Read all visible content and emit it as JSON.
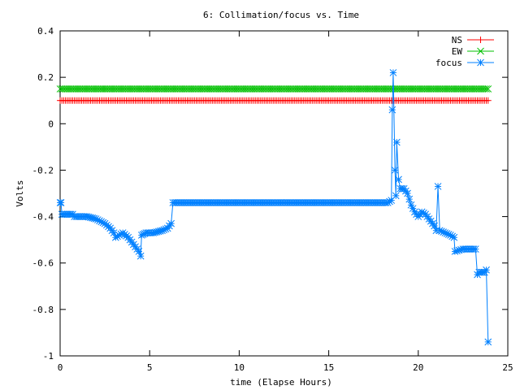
{
  "chart_data": {
    "type": "line",
    "title": "6: Collimation/focus vs. Time",
    "xlabel": "time (Elapse Hours)",
    "ylabel": "Volts",
    "xlim": [
      0,
      25
    ],
    "ylim": [
      -1,
      0.4
    ],
    "x_ticks": [
      0,
      5,
      10,
      15,
      20,
      25
    ],
    "y_ticks": [
      -1,
      -0.8,
      -0.6,
      -0.4,
      -0.2,
      0,
      0.2,
      0.4
    ],
    "x_tick_labels": [
      "0",
      "5",
      "10",
      "15",
      "20",
      "25"
    ],
    "y_tick_labels": [
      "-1",
      "-0.8",
      "-0.6",
      "-0.4",
      "-0.2",
      "0",
      "0.2",
      "0.4"
    ],
    "grid": false,
    "legend_position": "top-right",
    "series": [
      {
        "name": "NS",
        "color": "#ff0000",
        "marker": "plus",
        "points": [
          [
            0,
            0.1
          ],
          [
            23.9,
            0.1
          ]
        ]
      },
      {
        "name": "EW",
        "color": "#00c000",
        "marker": "cross",
        "points": [
          [
            0,
            0.15
          ],
          [
            23.9,
            0.15
          ]
        ]
      },
      {
        "name": "focus",
        "color": "#0080ff",
        "marker": "star",
        "points": [
          [
            0,
            -0.34
          ],
          [
            0.05,
            -0.34
          ],
          [
            0.1,
            -0.39
          ],
          [
            0.5,
            -0.39
          ],
          [
            0.7,
            -0.39
          ],
          [
            0.8,
            -0.4
          ],
          [
            1.5,
            -0.4
          ],
          [
            2.0,
            -0.41
          ],
          [
            2.5,
            -0.43
          ],
          [
            2.8,
            -0.45
          ],
          [
            3.0,
            -0.47
          ],
          [
            3.1,
            -0.49
          ],
          [
            3.3,
            -0.48
          ],
          [
            3.5,
            -0.47
          ],
          [
            3.8,
            -0.49
          ],
          [
            4.1,
            -0.52
          ],
          [
            4.4,
            -0.55
          ],
          [
            4.5,
            -0.57
          ],
          [
            4.55,
            -0.48
          ],
          [
            4.8,
            -0.47
          ],
          [
            5.2,
            -0.47
          ],
          [
            5.7,
            -0.46
          ],
          [
            6.0,
            -0.45
          ],
          [
            6.2,
            -0.43
          ],
          [
            6.3,
            -0.34
          ],
          [
            10.0,
            -0.34
          ],
          [
            15.0,
            -0.34
          ],
          [
            18.3,
            -0.34
          ],
          [
            18.5,
            -0.33
          ],
          [
            18.55,
            0.06
          ],
          [
            18.6,
            0.22
          ],
          [
            18.7,
            -0.2
          ],
          [
            18.75,
            -0.31
          ],
          [
            18.8,
            -0.08
          ],
          [
            18.9,
            -0.24
          ],
          [
            19.0,
            -0.28
          ],
          [
            19.2,
            -0.28
          ],
          [
            19.4,
            -0.3
          ],
          [
            19.6,
            -0.35
          ],
          [
            19.8,
            -0.38
          ],
          [
            20.0,
            -0.4
          ],
          [
            20.2,
            -0.38
          ],
          [
            20.4,
            -0.39
          ],
          [
            20.6,
            -0.41
          ],
          [
            20.9,
            -0.44
          ],
          [
            21.0,
            -0.46
          ],
          [
            21.1,
            -0.27
          ],
          [
            21.2,
            -0.46
          ],
          [
            21.5,
            -0.47
          ],
          [
            21.8,
            -0.48
          ],
          [
            22.0,
            -0.49
          ],
          [
            22.05,
            -0.55
          ],
          [
            22.5,
            -0.54
          ],
          [
            23.0,
            -0.54
          ],
          [
            23.2,
            -0.54
          ],
          [
            23.3,
            -0.65
          ],
          [
            23.4,
            -0.64
          ],
          [
            23.7,
            -0.64
          ],
          [
            23.8,
            -0.63
          ],
          [
            23.9,
            -0.94
          ]
        ]
      }
    ]
  }
}
